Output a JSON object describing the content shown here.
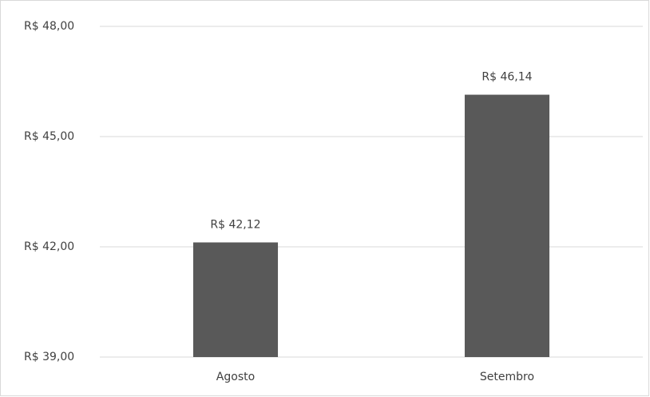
{
  "chart_data": {
    "type": "bar",
    "categories": [
      "Agosto",
      "Setembro"
    ],
    "values": [
      42.12,
      46.14
    ],
    "value_labels": [
      "R$ 42,12",
      "R$ 46,14"
    ],
    "color": "#595959",
    "ylim": [
      39,
      48
    ],
    "yticks": [
      {
        "value": 39,
        "label": "R$ 39,00"
      },
      {
        "value": 42,
        "label": "R$ 42,00"
      },
      {
        "value": 45,
        "label": "R$ 45,00"
      },
      {
        "value": 48,
        "label": "R$ 48,00"
      }
    ],
    "grid": true
  }
}
